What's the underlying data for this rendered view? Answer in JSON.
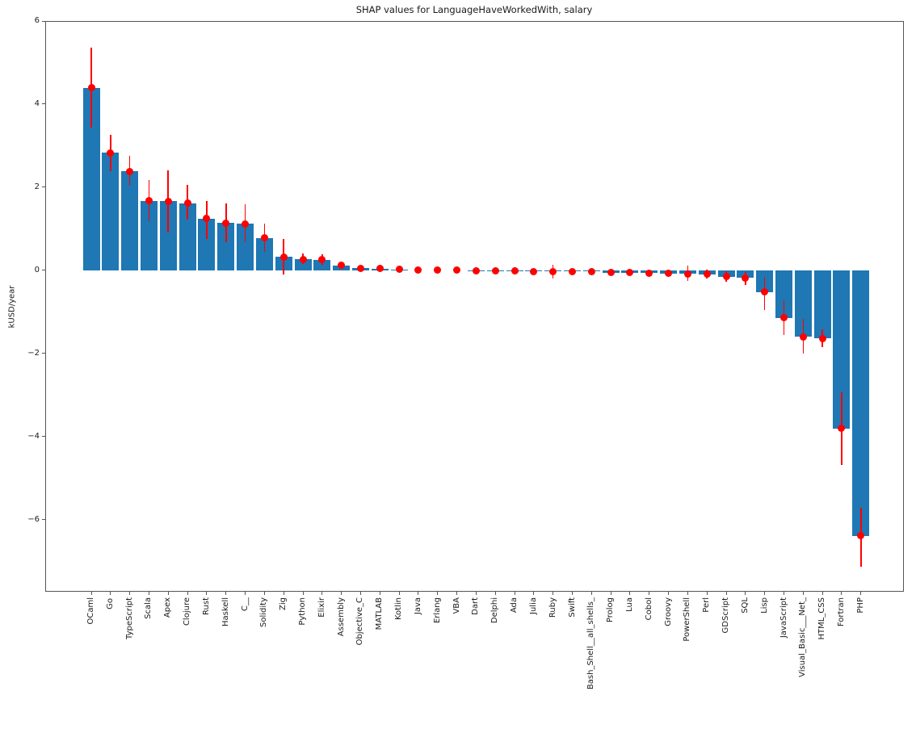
{
  "chart_data": {
    "type": "bar",
    "title": "SHAP values for LanguageHaveWorkedWith, salary",
    "xlabel": "",
    "ylabel": "kUSD/year",
    "ylim": [
      -7.73,
      6.0
    ],
    "yticks": [
      6,
      4,
      2,
      0,
      -2,
      -4,
      -6
    ],
    "ytick_labels": [
      "6",
      "4",
      "2",
      "0",
      "−2",
      "−4",
      "−6"
    ],
    "grid": false,
    "legend_position": "none",
    "bar_color": "#1f77b4",
    "error_color": "#ff0000",
    "categories": [
      "OCaml",
      "Go",
      "TypeScript",
      "Scala",
      "Apex",
      "Clojure",
      "Rust",
      "Haskell",
      "C__",
      "Solidity",
      "Zig",
      "Python",
      "Elixir",
      "Assembly",
      "Objective_C",
      "MATLAB",
      "Kotlin",
      "Java",
      "Erlang",
      "VBA",
      "Dart",
      "Delphi",
      "Ada",
      "Julia",
      "Ruby",
      "Swift",
      "Bash_Shell__all_shells_",
      "Prolog",
      "Lua",
      "Cobol",
      "Groovy",
      "PowerShell",
      "Perl",
      "GDScript",
      "SQL",
      "Lisp",
      "JavaScript",
      "Visual_Basic___Net_",
      "HTML_CSS",
      "Fortran",
      "PHP"
    ],
    "values": [
      4.39,
      2.83,
      2.38,
      1.67,
      1.66,
      1.62,
      1.25,
      1.14,
      1.12,
      0.78,
      0.32,
      0.27,
      0.26,
      0.12,
      0.05,
      0.04,
      0.02,
      0.0,
      0.0,
      0.0,
      -0.01,
      -0.02,
      -0.02,
      -0.03,
      -0.03,
      -0.03,
      -0.03,
      -0.05,
      -0.05,
      -0.06,
      -0.07,
      -0.08,
      -0.09,
      -0.15,
      -0.18,
      -0.52,
      -1.14,
      -1.6,
      -1.64,
      -3.8,
      -6.39
    ],
    "error_low": [
      3.44,
      2.39,
      2.03,
      1.19,
      0.91,
      1.23,
      0.75,
      0.67,
      0.67,
      0.45,
      -0.1,
      0.15,
      0.14,
      0.04,
      0.01,
      0.0,
      -0.01,
      -0.01,
      -0.02,
      -0.02,
      -0.03,
      -0.04,
      -0.05,
      -0.06,
      -0.19,
      -0.06,
      -0.07,
      -0.09,
      -0.1,
      -0.11,
      -0.12,
      -0.26,
      -0.2,
      -0.28,
      -0.36,
      -0.96,
      -1.55,
      -2.01,
      -1.85,
      -4.69,
      -7.12
    ],
    "error_high": [
      5.36,
      3.26,
      2.75,
      2.18,
      2.4,
      2.06,
      1.67,
      1.62,
      1.59,
      1.12,
      0.75,
      0.4,
      0.39,
      0.22,
      0.1,
      0.08,
      0.05,
      0.02,
      0.01,
      0.01,
      0.01,
      0.0,
      0.0,
      0.0,
      0.13,
      0.0,
      0.0,
      -0.01,
      -0.01,
      -0.01,
      -0.02,
      0.11,
      0.02,
      -0.02,
      -0.03,
      -0.16,
      -0.72,
      -1.17,
      -1.41,
      -2.94,
      -5.71
    ]
  }
}
